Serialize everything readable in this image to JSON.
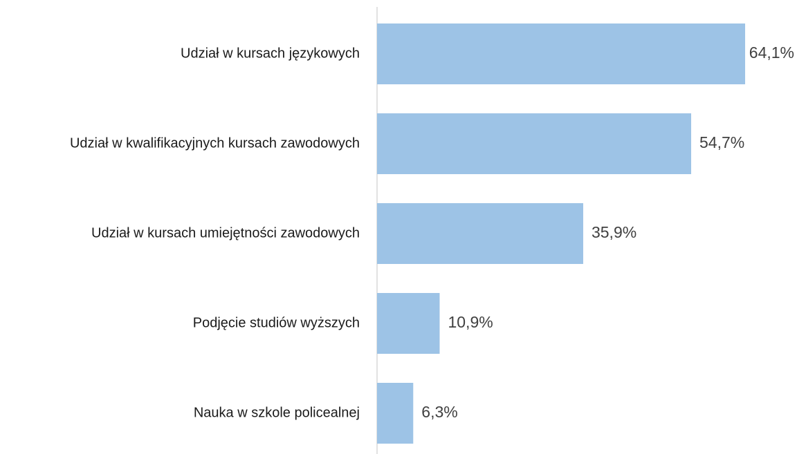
{
  "chart_data": {
    "type": "bar",
    "orientation": "horizontal",
    "categories": [
      "Udział w kursach językowych",
      "Udział w kwalifikacyjnych kursach zawodowych",
      "Udział w kursach umiejętności zawodowych",
      "Podjęcie studiów wyższych",
      "Nauka w szkole policealnej"
    ],
    "values": [
      64.1,
      54.7,
      35.9,
      10.9,
      6.3
    ],
    "value_labels": [
      "64,1%",
      "54,7%",
      "35,9%",
      "10,9%",
      "6,3%"
    ],
    "color": "#9dc3e6"
  }
}
